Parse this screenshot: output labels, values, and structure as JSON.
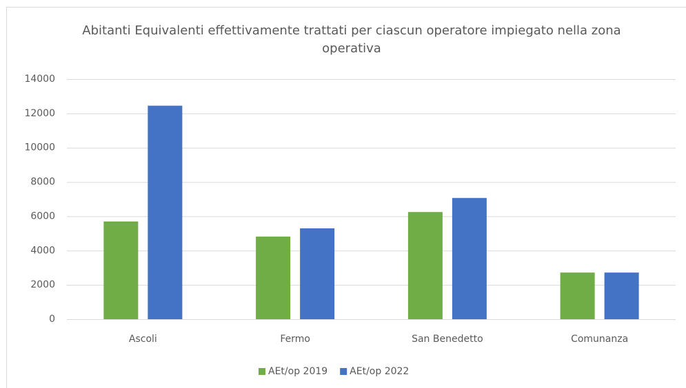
{
  "chart_data": {
    "type": "bar",
    "title": "Abitanti Equivalenti effettivamente trattati per ciascun operatore impiegato nella zona operativa",
    "categories": [
      "Ascoli",
      "Fermo",
      "San Benedetto",
      "Comunanza"
    ],
    "series": [
      {
        "name": "AEt/op 2019",
        "color": "#70ad47",
        "values": [
          5700,
          4820,
          6250,
          2720
        ]
      },
      {
        "name": "AEt/op 2022",
        "color": "#4472c4",
        "values": [
          12450,
          5300,
          7070,
          2720
        ]
      }
    ],
    "ylim": [
      0,
      14000
    ],
    "yticks": [
      0,
      2000,
      4000,
      6000,
      8000,
      10000,
      12000,
      14000
    ],
    "grid": true,
    "legend": "bottom"
  }
}
